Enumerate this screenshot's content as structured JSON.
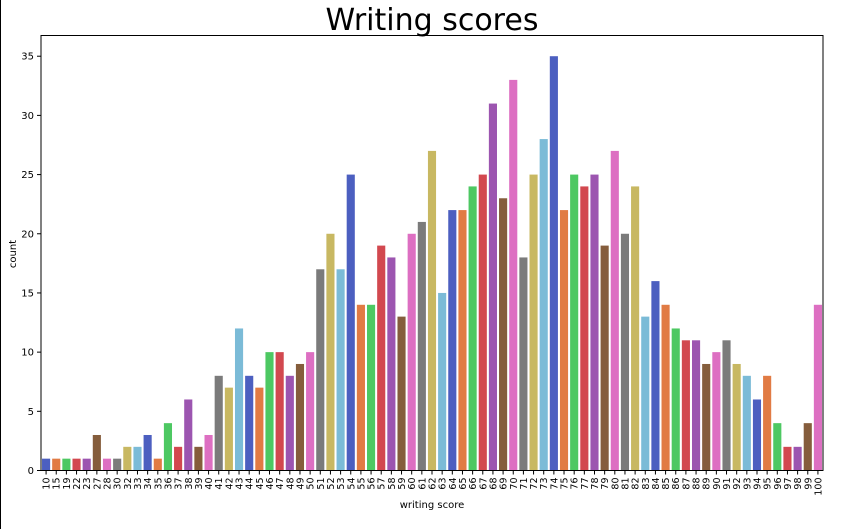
{
  "chart_data": {
    "type": "bar",
    "title": "Writing scores",
    "xlabel": "writing score",
    "ylabel": "count",
    "ylim": [
      0,
      36.75
    ],
    "yticks": [
      0,
      5,
      10,
      15,
      20,
      25,
      30,
      35
    ],
    "grid": false,
    "legend": "none",
    "categories": [
      "10",
      "15",
      "19",
      "22",
      "23",
      "27",
      "28",
      "30",
      "32",
      "33",
      "34",
      "35",
      "36",
      "37",
      "38",
      "39",
      "40",
      "41",
      "42",
      "43",
      "44",
      "45",
      "46",
      "47",
      "48",
      "49",
      "50",
      "51",
      "52",
      "53",
      "54",
      "55",
      "56",
      "57",
      "58",
      "59",
      "60",
      "61",
      "62",
      "63",
      "64",
      "65",
      "66",
      "67",
      "68",
      "69",
      "70",
      "71",
      "72",
      "73",
      "74",
      "75",
      "76",
      "77",
      "78",
      "79",
      "80",
      "81",
      "82",
      "83",
      "84",
      "85",
      "86",
      "87",
      "88",
      "89",
      "90",
      "91",
      "92",
      "93",
      "94",
      "95",
      "96",
      "97",
      "98",
      "99",
      "100"
    ],
    "values": [
      1,
      1,
      1,
      1,
      1,
      3,
      1,
      1,
      2,
      2,
      3,
      1,
      4,
      2,
      6,
      2,
      3,
      8,
      7,
      12,
      8,
      7,
      10,
      10,
      8,
      9,
      10,
      17,
      20,
      17,
      25,
      14,
      14,
      19,
      18,
      13,
      20,
      21,
      27,
      15,
      22,
      22,
      24,
      25,
      31,
      23,
      33,
      18,
      25,
      28,
      35,
      22,
      25,
      24,
      25,
      19,
      27,
      20,
      24,
      13,
      16,
      14,
      12,
      11,
      11,
      9,
      10,
      11,
      9,
      8,
      6,
      8,
      4,
      2,
      2,
      4,
      14
    ],
    "palette": [
      "#4c5fc0",
      "#e17b44",
      "#4dc862",
      "#d2484f",
      "#9c55b0",
      "#855d3c",
      "#dd6fc2",
      "#7b7b7b",
      "#c8b862",
      "#7bbbd7"
    ]
  }
}
